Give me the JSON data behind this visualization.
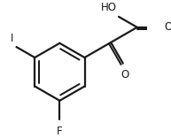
{
  "bg_color": "#ffffff",
  "line_color": "#1a1a1a",
  "line_width": 1.6,
  "label_F": "F",
  "label_I": "I",
  "label_O1": "O",
  "label_O2": "O",
  "label_HO": "HO",
  "font_size": 8.5
}
